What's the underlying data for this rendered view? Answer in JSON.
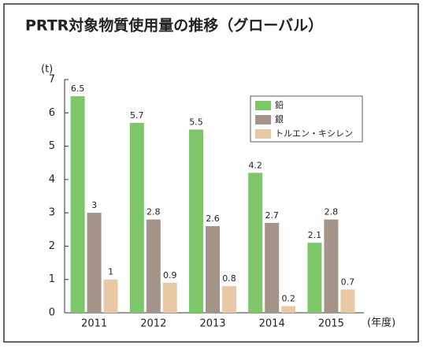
{
  "chart_data": {
    "type": "bar",
    "title": "PRTR対象物質使用量の推移（グローバル）",
    "y_label": "(t)",
    "x_label": "(年度)",
    "categories": [
      "2011",
      "2012",
      "2013",
      "2014",
      "2015"
    ],
    "series": [
      {
        "name": "鉛",
        "color": "#7dc66a",
        "values": [
          6.5,
          5.7,
          5.5,
          4.2,
          2.1
        ]
      },
      {
        "name": "銀",
        "color": "#a39389",
        "values": [
          3,
          2.8,
          2.6,
          2.7,
          2.8
        ]
      },
      {
        "name": "トルエン・キシレン",
        "color": "#e9c9a5",
        "values": [
          1,
          0.9,
          0.8,
          0.2,
          0.7
        ]
      }
    ],
    "ylim": [
      0,
      7
    ],
    "yticks": [
      0,
      1,
      2,
      3,
      4,
      5,
      6,
      7
    ],
    "legend": "upper right"
  }
}
